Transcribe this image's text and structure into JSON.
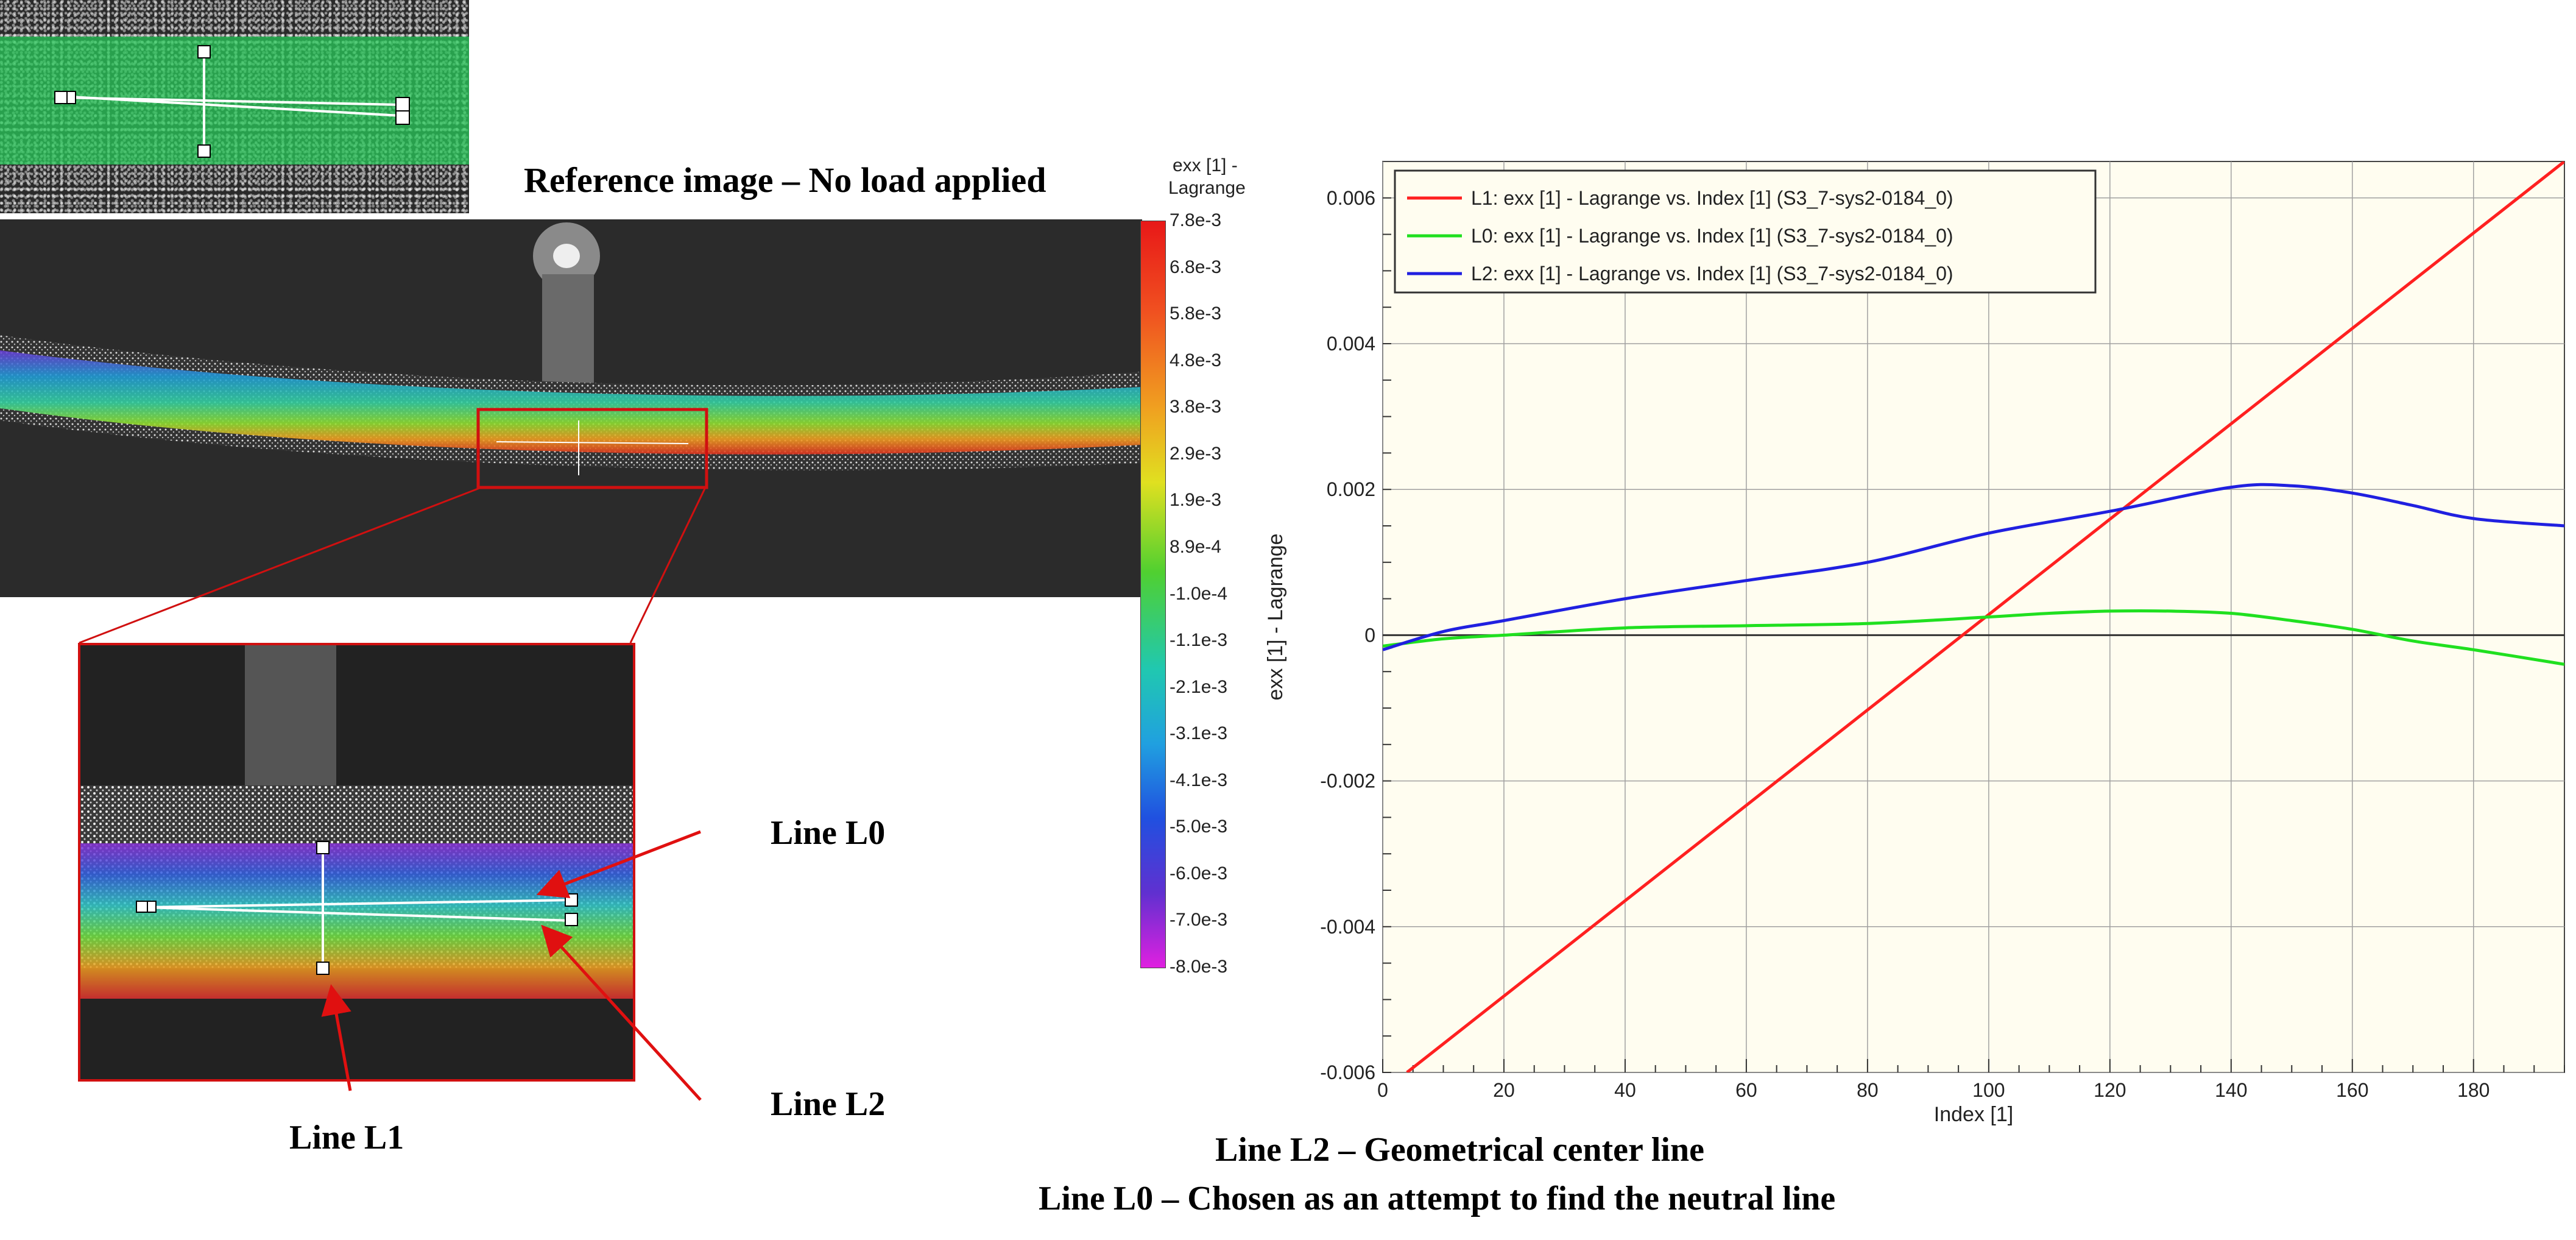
{
  "reference_title": "Reference image – No load applied",
  "colorbar": {
    "title_line1": "exx [1] -",
    "title_line2": "Lagrange",
    "ticks": [
      "7.8e-3",
      "6.8e-3",
      "5.8e-3",
      "4.8e-3",
      "3.8e-3",
      "2.9e-3",
      "1.9e-3",
      "8.9e-4",
      "-1.0e-4",
      "-1.1e-3",
      "-2.1e-3",
      "-3.1e-3",
      "-4.1e-3",
      "-5.0e-3",
      "-6.0e-3",
      "-7.0e-3",
      "-8.0e-3"
    ]
  },
  "annotations": {
    "line_l0": "Line L0",
    "line_l1": "Line L1",
    "line_l2": "Line L2"
  },
  "captions": {
    "line1": "Line L2 – Geometrical center line",
    "line2": "Line L0 – Chosen as an attempt to find the neutral line"
  },
  "chart_data": {
    "type": "line",
    "xlabel": "Index [1]",
    "ylabel": "exx [1] - Lagrange",
    "xlim": [
      0,
      195
    ],
    "ylim": [
      -0.006,
      0.0065
    ],
    "xticks": [
      0,
      20,
      40,
      60,
      80,
      100,
      120,
      140,
      160,
      180
    ],
    "xtick_labels": [
      "0",
      "20",
      "40",
      "60",
      "80",
      "100",
      "120",
      "140",
      "160",
      "180"
    ],
    "yticks": [
      -0.006,
      -0.004,
      -0.002,
      0,
      0.002,
      0.004,
      0.006
    ],
    "ytick_labels": [
      "-0.006",
      "-0.004",
      "-0.002",
      "0",
      "0.002",
      "0.004",
      "0.006"
    ],
    "grid": true,
    "legend_position": "top-left",
    "series": [
      {
        "name": "L1: exx [1] - Lagrange vs. Index [1] (S3_7-sys2-0184_0)",
        "color": "#ff2020",
        "x": [
          4,
          195
        ],
        "y": [
          -0.006,
          0.0065
        ]
      },
      {
        "name": "L0: exx [1] - Lagrange vs. Index [1] (S3_7-sys2-0184_0)",
        "color": "#20e020",
        "x": [
          0,
          10,
          20,
          40,
          60,
          80,
          100,
          110,
          120,
          130,
          140,
          150,
          160,
          170,
          180,
          195
        ],
        "y": [
          -0.00015,
          -5e-05,
          0.0,
          0.0001,
          0.00013,
          0.00016,
          0.00025,
          0.0003,
          0.00033,
          0.00033,
          0.0003,
          0.0002,
          8e-05,
          -8e-05,
          -0.0002,
          -0.0004
        ]
      },
      {
        "name": "L2: exx [1] - Lagrange vs. Index [1] (S3_7-sys2-0184_0)",
        "color": "#2020e0",
        "x": [
          0,
          10,
          20,
          40,
          60,
          80,
          100,
          120,
          140,
          150,
          160,
          170,
          180,
          195
        ],
        "y": [
          -0.0002,
          5e-05,
          0.0002,
          0.0005,
          0.00075,
          0.001,
          0.0014,
          0.0017,
          0.00203,
          0.00205,
          0.00195,
          0.00178,
          0.0016,
          0.0015
        ]
      }
    ]
  }
}
